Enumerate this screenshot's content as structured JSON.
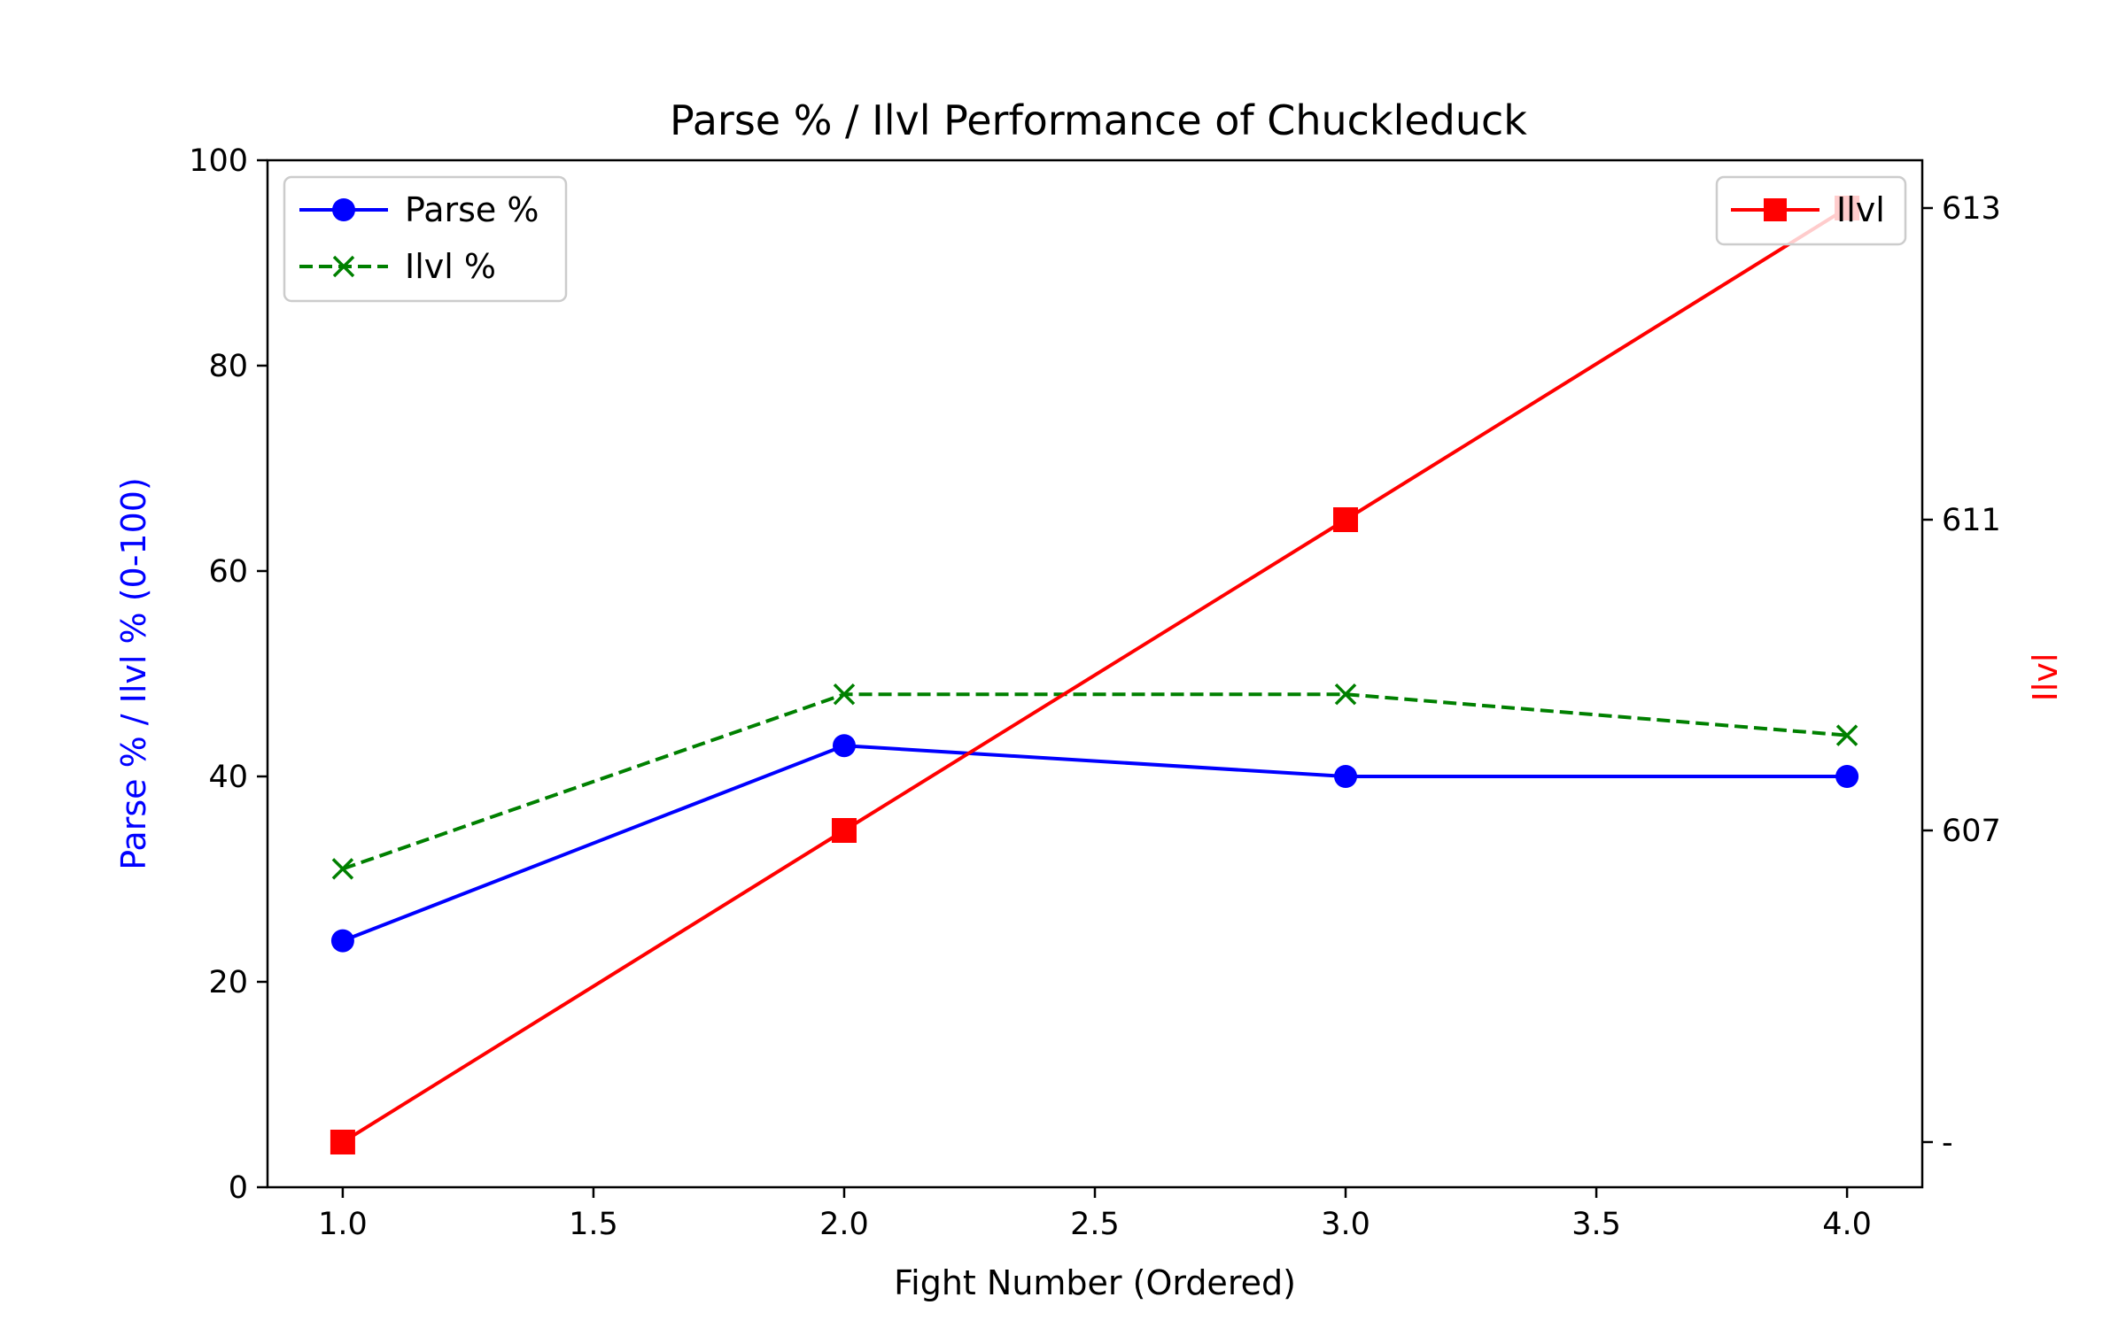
{
  "chart_data": {
    "type": "line",
    "title": "Parse % / Ilvl Performance of Chuckleduck",
    "xlabel": "Fight Number (Ordered)",
    "ylabel": "Parse % / Ilvl % (0-100)",
    "y2label": "Ilvl",
    "x": [
      1,
      2,
      3,
      4
    ],
    "xlim": [
      0.85,
      4.15
    ],
    "xticks": [
      "1.0",
      "1.5",
      "2.0",
      "2.5",
      "3.0",
      "3.5",
      "4.0"
    ],
    "ylim": [
      0,
      100
    ],
    "yticks": [
      "0",
      "20",
      "40",
      "60",
      "80",
      "100"
    ],
    "y2_levels": [
      "-",
      "607",
      "611",
      "613"
    ],
    "y2ticks": [
      "-",
      "607",
      "611",
      "613"
    ],
    "grid": false,
    "series": [
      {
        "name": "Parse %",
        "axis": "left",
        "values": [
          24,
          43,
          40,
          40
        ],
        "color": "#0000ff",
        "marker": "circle",
        "linestyle": "solid"
      },
      {
        "name": "Ilvl %",
        "axis": "left",
        "values": [
          31,
          48,
          48,
          44
        ],
        "color": "#008000",
        "marker": "x",
        "linestyle": "dashed"
      },
      {
        "name": "Ilvl",
        "axis": "right",
        "values": [
          "-",
          "607",
          "611",
          "613"
        ],
        "color": "#ff0000",
        "marker": "square",
        "linestyle": "solid"
      }
    ],
    "legend_left": {
      "placement": "top-left",
      "entries": [
        "Parse %",
        "Ilvl %"
      ]
    },
    "legend_right": {
      "placement": "top-right",
      "entries": [
        "Ilvl"
      ]
    }
  }
}
